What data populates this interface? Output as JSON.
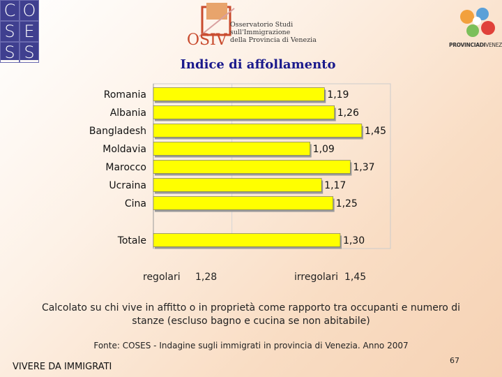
{
  "logos": {
    "coses_letters": [
      "C",
      "O",
      "S",
      "E",
      "S",
      "S"
    ],
    "osiv_mark": "OSIV",
    "osiv_lines": [
      "Osservatorio Studi",
      "sull'Immigrazione",
      "della Provincia di Venezia"
    ],
    "provincia_bold": "PROVINCIADI",
    "provincia_light": "VENEZIA"
  },
  "colors": {
    "title": "#1a1a8c",
    "bar_fill": "#ffff00",
    "bar_edge": "#666666",
    "coses_bg": "#3f3f8f"
  },
  "chart_data": {
    "type": "bar",
    "orientation": "horizontal",
    "title": "Indice di affollamento",
    "categories": [
      "Romania",
      "Albania",
      "Bangladesh",
      "Moldavia",
      "Marocco",
      "Ucraina",
      "Cina",
      "Totale"
    ],
    "values": [
      1.19,
      1.26,
      1.45,
      1.09,
      1.37,
      1.17,
      1.25,
      1.3
    ],
    "value_labels": [
      "1,19",
      "1,26",
      "1,45",
      "1,09",
      "1,37",
      "1,17",
      "1,25",
      "1,30"
    ],
    "xlim": [
      0,
      1.6
    ],
    "grid": true,
    "legend": "none"
  },
  "summary": {
    "regolari_label": "regolari",
    "regolari_value": "1,28",
    "irregolari_label": "irregolari",
    "irregolari_value": "1,45"
  },
  "note_line1": "Calcolato su chi vive in affitto o in proprietà come rapporto tra occupanti e numero di",
  "note_line2": "stanze (escluso bagno e cucina se non abitabile)",
  "source": "Fonte: COSES - Indagine sugli immigrati in provincia di Venezia. Anno 2007",
  "footer_left": "VIVERE DA IMMIGRATI",
  "page_number": "67"
}
